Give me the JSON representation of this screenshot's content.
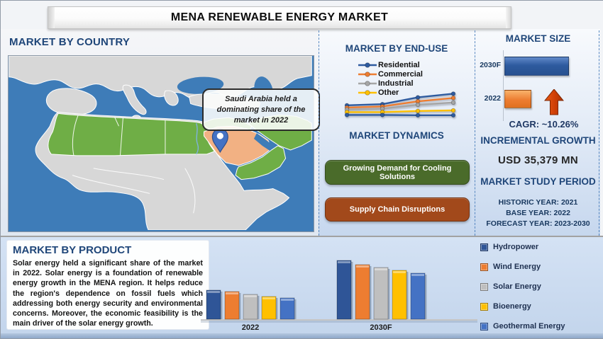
{
  "title": "MENA RENEWABLE ENERGY MARKET",
  "colors": {
    "accent_blue_header": "#1F4679",
    "dashed_divider": "#4A7EBB",
    "map": {
      "ocean": "#3E7CB8",
      "land": "#D7D7D7",
      "green": "#6FAE46",
      "saudi": "#F2B183",
      "pin": "#4472C4"
    }
  },
  "country_panel": {
    "header": "MARKET BY COUNTRY",
    "callout": "Saudi Arabia held a dominating share of the market in 2022",
    "highlighted_country": "Saudi Arabia"
  },
  "end_use_panel": {
    "header": "MARKET BY END-USE"
  },
  "dynamics_panel": {
    "header": "MARKET DYNAMICS",
    "drivers": [
      {
        "label": "Growing Demand for Cooling Solutions",
        "color": "#4A6B2A"
      },
      {
        "label": "Supply Chain Disruptions",
        "color": "#A2491B"
      }
    ]
  },
  "market_size_panel": {
    "header": "MARKET SIZE",
    "cagr_label": "CAGR:",
    "cagr_value": "~10.26%"
  },
  "incremental_growth": {
    "header": "INCREMENTAL GROWTH",
    "value": "USD 35,379 MN"
  },
  "study_period": {
    "header": "MARKET STUDY PERIOD",
    "items": [
      "HISTORIC YEAR: 2021",
      "BASE YEAR: 2022",
      "FORECAST YEAR: 2023-2030"
    ]
  },
  "product_panel": {
    "header": "MARKET BY PRODUCT",
    "paragraph": "Solar energy held a significant share of the market in 2022. Solar energy is a foundation of renewable energy growth in the MENA region. It helps reduce the region's dependence on fossil fuels which addressing both energy security and environmental concerns. Moreover, the economic feasibility is the main driver of the solar energy growth."
  },
  "chart_data": [
    {
      "id": "market_by_end_use",
      "type": "line",
      "title": "MARKET BY END-USE",
      "x": [
        1,
        2,
        3,
        4
      ],
      "x_tick_labels_visible": false,
      "axes_visible": false,
      "legend_position": "top-left",
      "series": [
        {
          "name": "Residential",
          "color": "#2E5B9F",
          "values": [
            38,
            42,
            66,
            79
          ]
        },
        {
          "name": "Commercial",
          "color": "#ED7D31",
          "values": [
            30,
            34,
            52,
            64
          ]
        },
        {
          "name": "Industrial",
          "color": "#A6A6A6",
          "values": [
            23,
            26,
            40,
            48
          ]
        },
        {
          "name": "Other",
          "color": "#FFC000",
          "values": [
            14,
            14,
            18,
            20
          ]
        }
      ],
      "unlabeled_bottom_line": {
        "name": "unlabeled-bottom-line",
        "color": "#2E5B9F",
        "values": [
          4,
          4,
          3,
          3
        ]
      }
    },
    {
      "id": "market_size",
      "type": "bar",
      "orientation": "horizontal",
      "title": "MARKET SIZE",
      "categories": [
        "2030F",
        "2022"
      ],
      "values_relative_length": [
        100,
        41
      ],
      "colors": [
        "#2E5B9F",
        "#ED7D31"
      ],
      "annotations": [
        "CAGR: ~10.26%"
      ],
      "gridlines": false
    },
    {
      "id": "market_by_product",
      "type": "bar",
      "title": "MARKET BY PRODUCT",
      "categories": [
        "2022",
        "2030F"
      ],
      "series": [
        {
          "name": "Hydropower",
          "color": "#2F5597",
          "values": [
            41,
            83
          ]
        },
        {
          "name": "Wind Energy",
          "color": "#ED7D31",
          "values": [
            39,
            77
          ]
        },
        {
          "name": "Solar Energy",
          "color": "#BFBFBF",
          "values": [
            35,
            73
          ]
        },
        {
          "name": "Bioenergy",
          "color": "#FFC000",
          "values": [
            32,
            69
          ]
        },
        {
          "name": "Geothermal Energy",
          "color": "#4472C4",
          "values": [
            30,
            65
          ]
        }
      ],
      "ylim": [
        0,
        100
      ],
      "legend_position": "right",
      "gridlines": false
    }
  ]
}
